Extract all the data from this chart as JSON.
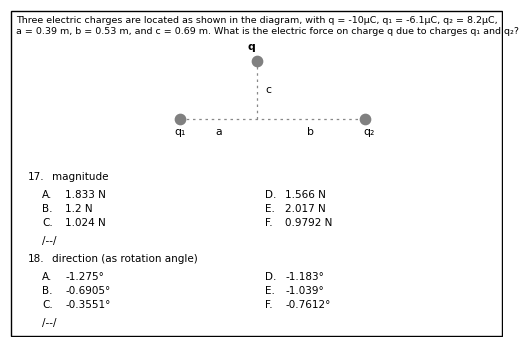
{
  "title_line1": "Three electric charges are located as shown in the diagram, with q = -10µC, q₁ = -6.1µC, q₂ = 8.2µC,",
  "title_line2": "a = 0.39 m, b = 0.53 m, and c = 0.69 m. What is the electric force on charge q due to charges q₁ and q₂?",
  "bg_color": "#ffffff",
  "diagram": {
    "q_label": "q",
    "q1_label": "q₁",
    "q2_label": "q₂",
    "a_label": "a",
    "b_label": "b",
    "c_label": "c",
    "dot_color": "#808080",
    "line_color": "#888888"
  },
  "q17": {
    "number": "17.",
    "label": "magnitude",
    "options_left": [
      [
        "A.",
        "1.833 N"
      ],
      [
        "B.",
        "1.2 N"
      ],
      [
        "C.",
        "1.024 N"
      ]
    ],
    "options_right": [
      [
        "D.",
        "1.566 N"
      ],
      [
        "E.",
        "2.017 N"
      ],
      [
        "F.",
        "0.9792 N"
      ]
    ],
    "separator": "/--/"
  },
  "q18": {
    "number": "18.",
    "label": "direction (as rotation angle)",
    "options_left": [
      [
        "A.",
        "-1.275°"
      ],
      [
        "B.",
        "-0.6905°"
      ],
      [
        "C.",
        "-0.3551°"
      ]
    ],
    "options_right": [
      [
        "D.",
        "-1.183°"
      ],
      [
        "E.",
        "-1.039°"
      ],
      [
        "F.",
        "-0.7612°"
      ]
    ],
    "separator": "/--/"
  },
  "fs_title": 6.8,
  "fs_body": 7.5,
  "fs_diag": 7.8
}
